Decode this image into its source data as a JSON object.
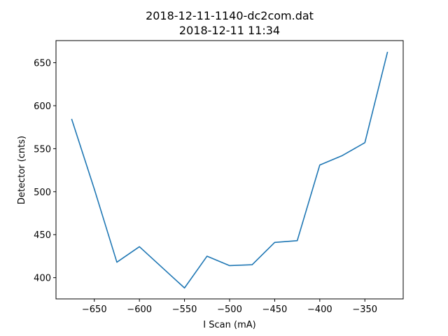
{
  "chart_data": {
    "type": "line",
    "title_lines": [
      "2018-12-11-1140-dc2com.dat",
      "2018-12-11 11:34"
    ],
    "xlabel": "I Scan (mA)",
    "ylabel": "Detector (cnts)",
    "xlim": [
      -692.5,
      -307.5
    ],
    "ylim": [
      375.3,
      675.7
    ],
    "xticks": [
      -650,
      -600,
      -550,
      -500,
      -450,
      -400,
      -350
    ],
    "xtick_labels": [
      "−650",
      "−600",
      "−550",
      "−500",
      "−450",
      "−400",
      "−350"
    ],
    "yticks": [
      400,
      450,
      500,
      550,
      600,
      650
    ],
    "ytick_labels": [
      "400",
      "450",
      "500",
      "550",
      "600",
      "650"
    ],
    "grid": false,
    "series": [
      {
        "color": "#1f77b4",
        "x": [
          -675,
          -650,
          -625,
          -600,
          -575,
          -550,
          -525,
          -500,
          -475,
          -450,
          -425,
          -400,
          -375,
          -350,
          -325
        ],
        "y": [
          584,
          503,
          418,
          436,
          412,
          388,
          425,
          414,
          415,
          441,
          443,
          531,
          542,
          557,
          662
        ]
      }
    ]
  }
}
